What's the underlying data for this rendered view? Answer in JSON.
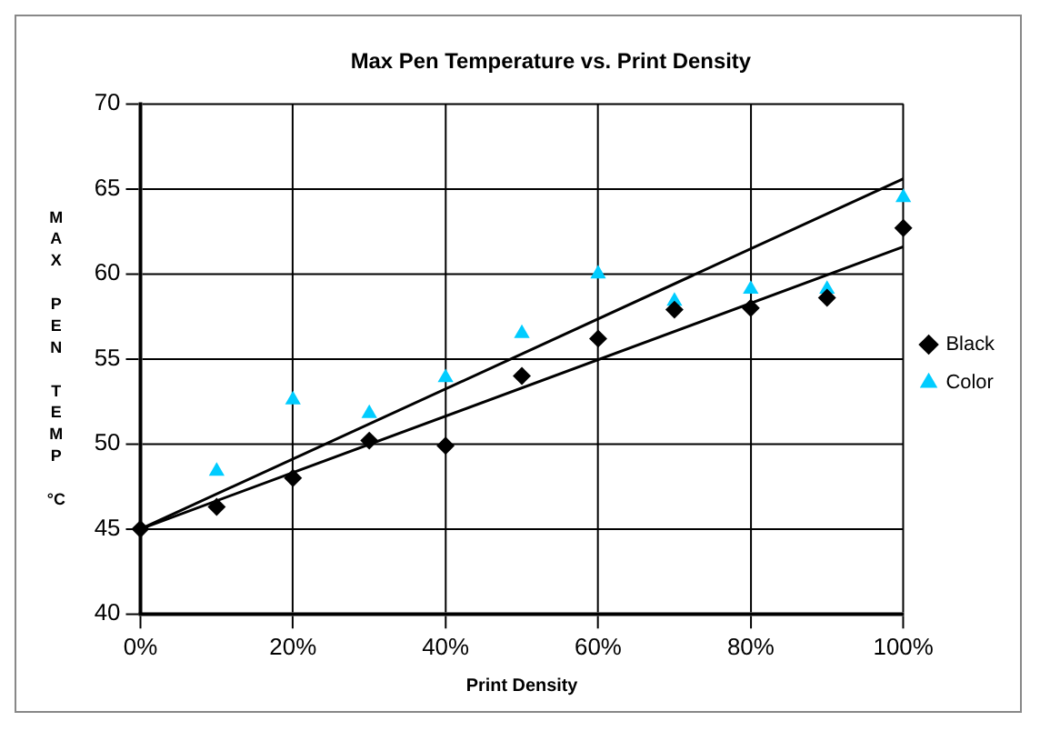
{
  "chart_data": {
    "type": "scatter",
    "title": "Max Pen Temperature vs. Print Density",
    "xlabel": "Print Density",
    "ylabel": "MAX PEN TEMP °C",
    "xlim": [
      0,
      100
    ],
    "xticks": [
      {
        "value": 0,
        "label": "0%"
      },
      {
        "value": 20,
        "label": "20%"
      },
      {
        "value": 40,
        "label": "40%"
      },
      {
        "value": 60,
        "label": "60%"
      },
      {
        "value": 80,
        "label": "80%"
      },
      {
        "value": 100,
        "label": "100%"
      }
    ],
    "ylim": [
      40,
      70
    ],
    "yticks": [
      40,
      45,
      50,
      55,
      60,
      65,
      70
    ],
    "grid": true,
    "legend": "right",
    "series": [
      {
        "name": "Black",
        "color": "#000000",
        "marker": "diamond",
        "x": [
          0,
          10,
          20,
          30,
          40,
          50,
          60,
          70,
          80,
          90,
          100
        ],
        "values": [
          45,
          46.3,
          48,
          50.2,
          49.9,
          54,
          56.2,
          57.9,
          58,
          58.6,
          62.7
        ]
      },
      {
        "name": "Color",
        "color": "#00ccff",
        "marker": "triangle",
        "x": [
          10,
          20,
          30,
          40,
          50,
          60,
          70,
          80,
          90,
          100
        ],
        "values": [
          48.4,
          52.6,
          51.8,
          53.9,
          56.5,
          60,
          58.4,
          59.1,
          59.1,
          64.5
        ]
      },
      {
        "type": "line",
        "color": "#000000",
        "marker": "none",
        "line_style": "solid",
        "x": [
          0,
          100
        ],
        "values": [
          45,
          61.6
        ]
      },
      {
        "type": "line",
        "color": "#000000",
        "marker": "none",
        "line_style": "solid",
        "x": [
          0,
          100
        ],
        "values": [
          45,
          65.6
        ]
      }
    ]
  }
}
